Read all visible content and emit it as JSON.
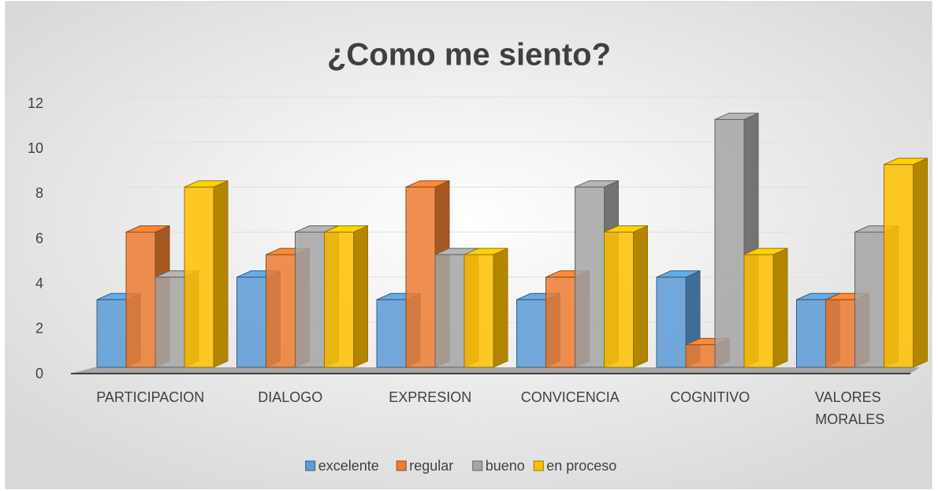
{
  "chart_data": {
    "type": "bar3d",
    "title": "¿Como me siento?",
    "categories": [
      "PARTICIPACION",
      "DIALOGO",
      "EXPRESION",
      "CONVICENCIA",
      "COGNITIVO",
      "VALORES MORALES"
    ],
    "series": [
      {
        "name": "excelente",
        "color": "#5b9bd5",
        "values": [
          3,
          4,
          3,
          3,
          4,
          3
        ]
      },
      {
        "name": "regular",
        "color": "#ed7d31",
        "values": [
          6,
          5,
          8,
          4,
          1,
          3
        ]
      },
      {
        "name": "bueno",
        "color": "#a5a5a5",
        "values": [
          4,
          6,
          5,
          8,
          11,
          6
        ]
      },
      {
        "name": "en proceso",
        "color": "#ffc000",
        "values": [
          8,
          6,
          5,
          6,
          5,
          9
        ]
      }
    ],
    "ylim": [
      0,
      12
    ],
    "yticks": [
      0,
      2,
      4,
      6,
      8,
      10,
      12
    ],
    "grid": true,
    "legend": "bottom"
  }
}
